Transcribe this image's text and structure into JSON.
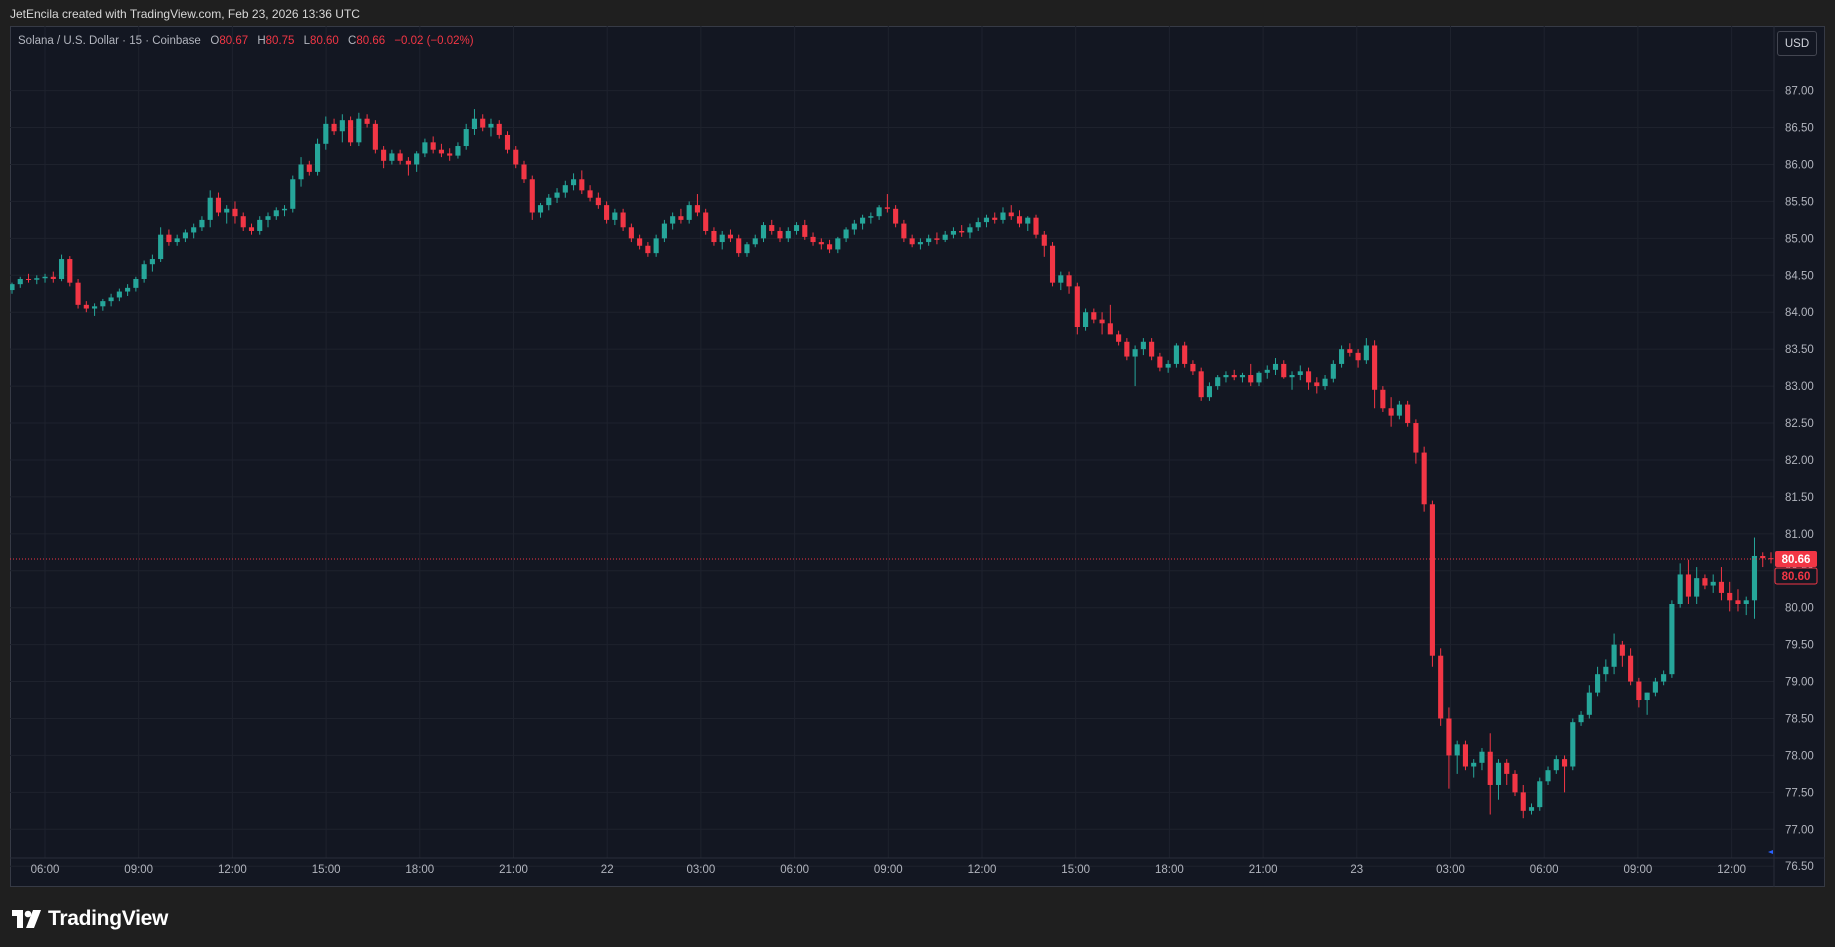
{
  "header": {
    "attribution": "JetEncila created with TradingView.com, Feb 23, 2026 13:36 UTC"
  },
  "legend": {
    "symbol": "Solana / U.S. Dollar · 15 · Coinbase",
    "o_label": "O",
    "o_value": "80.67",
    "h_label": "H",
    "h_value": "80.75",
    "l_label": "L",
    "l_value": "80.60",
    "c_label": "C",
    "c_value": "80.66",
    "change": "−0.02 (−0.02%)"
  },
  "toolbar": {
    "currency_label": "USD"
  },
  "footer": {
    "brand": "TradingView",
    "logo_icon": "tradingview-logo-icon"
  },
  "colors": {
    "background": "#131722",
    "up": "#26a69a",
    "down": "#f23645",
    "grid": "#1e222d",
    "text": "#b2b5be",
    "last_price": "#f23645"
  },
  "chart_data": {
    "type": "candlestick",
    "title": "Solana / U.S. Dollar · 15 · Coinbase",
    "xlabel": "",
    "ylabel": "",
    "ylim": [
      76.3,
      87.55
    ],
    "y_ticks": [
      "87.00",
      "86.50",
      "86.00",
      "85.50",
      "85.00",
      "84.50",
      "84.00",
      "83.50",
      "83.00",
      "82.50",
      "82.00",
      "81.50",
      "81.00",
      "80.50",
      "80.00",
      "79.50",
      "79.00",
      "78.50",
      "78.00",
      "77.50",
      "77.00",
      "76.50"
    ],
    "x_ticks": [
      "06:00",
      "09:00",
      "12:00",
      "15:00",
      "18:00",
      "21:00",
      "22",
      "03:00",
      "06:00",
      "09:00",
      "12:00",
      "15:00",
      "18:00",
      "21:00",
      "23",
      "03:00",
      "06:00",
      "09:00",
      "12:00"
    ],
    "last_price": "80.66",
    "last_price_secondary": "80.60",
    "grid": true,
    "candles": [
      [
        84.3,
        84.4,
        84.25,
        84.38
      ],
      [
        84.38,
        84.48,
        84.33,
        84.45
      ],
      [
        84.45,
        84.52,
        84.4,
        84.44
      ],
      [
        84.44,
        84.5,
        84.38,
        84.46
      ],
      [
        84.46,
        84.52,
        84.4,
        84.48
      ],
      [
        84.48,
        84.55,
        84.4,
        84.45
      ],
      [
        84.45,
        84.78,
        84.42,
        84.72
      ],
      [
        84.72,
        84.76,
        84.35,
        84.4
      ],
      [
        84.4,
        84.45,
        84.05,
        84.1
      ],
      [
        84.1,
        84.15,
        84.0,
        84.05
      ],
      [
        84.05,
        84.12,
        83.95,
        84.08
      ],
      [
        84.08,
        84.18,
        84.02,
        84.15
      ],
      [
        84.15,
        84.25,
        84.08,
        84.2
      ],
      [
        84.2,
        84.32,
        84.15,
        84.28
      ],
      [
        84.28,
        84.38,
        84.22,
        84.33
      ],
      [
        84.33,
        84.48,
        84.28,
        84.45
      ],
      [
        84.45,
        84.7,
        84.4,
        84.65
      ],
      [
        84.65,
        84.78,
        84.55,
        84.72
      ],
      [
        84.72,
        85.15,
        84.68,
        85.05
      ],
      [
        85.05,
        85.12,
        84.9,
        84.95
      ],
      [
        84.95,
        85.05,
        84.9,
        85.0
      ],
      [
        85.0,
        85.12,
        84.95,
        85.08
      ],
      [
        85.08,
        85.2,
        85.0,
        85.15
      ],
      [
        85.15,
        85.3,
        85.1,
        85.25
      ],
      [
        85.25,
        85.65,
        85.15,
        85.55
      ],
      [
        85.55,
        85.62,
        85.3,
        85.35
      ],
      [
        85.35,
        85.45,
        85.2,
        85.4
      ],
      [
        85.4,
        85.5,
        85.2,
        85.3
      ],
      [
        85.3,
        85.35,
        85.1,
        85.15
      ],
      [
        85.15,
        85.2,
        85.05,
        85.1
      ],
      [
        85.1,
        85.3,
        85.05,
        85.25
      ],
      [
        85.25,
        85.35,
        85.15,
        85.3
      ],
      [
        85.3,
        85.42,
        85.25,
        85.38
      ],
      [
        85.38,
        85.45,
        85.3,
        85.4
      ],
      [
        85.4,
        85.85,
        85.35,
        85.8
      ],
      [
        85.8,
        86.1,
        85.7,
        86.0
      ],
      [
        86.0,
        86.05,
        85.85,
        85.9
      ],
      [
        85.9,
        86.35,
        85.85,
        86.28
      ],
      [
        86.28,
        86.65,
        86.2,
        86.55
      ],
      [
        86.55,
        86.62,
        86.4,
        86.45
      ],
      [
        86.45,
        86.68,
        86.3,
        86.6
      ],
      [
        86.6,
        86.65,
        86.25,
        86.3
      ],
      [
        86.3,
        86.7,
        86.25,
        86.62
      ],
      [
        86.62,
        86.68,
        86.5,
        86.55
      ],
      [
        86.55,
        86.6,
        86.15,
        86.2
      ],
      [
        86.2,
        86.25,
        85.95,
        86.05
      ],
      [
        86.05,
        86.2,
        86.0,
        86.15
      ],
      [
        86.15,
        86.2,
        86.0,
        86.05
      ],
      [
        86.05,
        86.1,
        85.85,
        86.0
      ],
      [
        86.0,
        86.18,
        85.9,
        86.15
      ],
      [
        86.15,
        86.35,
        86.1,
        86.3
      ],
      [
        86.3,
        86.38,
        86.15,
        86.2
      ],
      [
        86.2,
        86.28,
        86.1,
        86.15
      ],
      [
        86.15,
        86.22,
        86.05,
        86.12
      ],
      [
        86.12,
        86.3,
        86.08,
        86.25
      ],
      [
        86.25,
        86.55,
        86.2,
        86.48
      ],
      [
        86.48,
        86.75,
        86.4,
        86.62
      ],
      [
        86.62,
        86.68,
        86.45,
        86.5
      ],
      [
        86.5,
        86.62,
        86.38,
        86.55
      ],
      [
        86.55,
        86.6,
        86.35,
        86.4
      ],
      [
        86.4,
        86.45,
        86.15,
        86.2
      ],
      [
        86.2,
        86.25,
        85.95,
        86.0
      ],
      [
        86.0,
        86.05,
        85.75,
        85.8
      ],
      [
        85.8,
        85.85,
        85.25,
        85.35
      ],
      [
        85.35,
        85.48,
        85.28,
        85.45
      ],
      [
        85.45,
        85.6,
        85.38,
        85.55
      ],
      [
        85.55,
        85.68,
        85.48,
        85.62
      ],
      [
        85.62,
        85.78,
        85.55,
        85.72
      ],
      [
        85.72,
        85.88,
        85.65,
        85.8
      ],
      [
        85.8,
        85.92,
        85.6,
        85.65
      ],
      [
        85.65,
        85.72,
        85.5,
        85.55
      ],
      [
        85.55,
        85.62,
        85.4,
        85.45
      ],
      [
        85.45,
        85.5,
        85.2,
        85.25
      ],
      [
        85.25,
        85.4,
        85.18,
        85.35
      ],
      [
        85.35,
        85.4,
        85.1,
        85.15
      ],
      [
        85.15,
        85.2,
        84.95,
        85.0
      ],
      [
        85.0,
        85.05,
        84.85,
        84.9
      ],
      [
        84.9,
        84.95,
        84.75,
        84.8
      ],
      [
        84.8,
        85.05,
        84.75,
        85.0
      ],
      [
        85.0,
        85.25,
        84.95,
        85.2
      ],
      [
        85.2,
        85.35,
        85.12,
        85.3
      ],
      [
        85.3,
        85.4,
        85.2,
        85.25
      ],
      [
        85.25,
        85.5,
        85.2,
        85.45
      ],
      [
        85.45,
        85.6,
        85.3,
        85.35
      ],
      [
        85.35,
        85.4,
        85.05,
        85.1
      ],
      [
        85.1,
        85.15,
        84.9,
        84.95
      ],
      [
        84.95,
        85.1,
        84.85,
        85.05
      ],
      [
        85.05,
        85.12,
        84.95,
        85.0
      ],
      [
        85.0,
        85.05,
        84.75,
        84.8
      ],
      [
        84.8,
        84.95,
        84.75,
        84.92
      ],
      [
        84.92,
        85.05,
        84.88,
        85.0
      ],
      [
        85.0,
        85.22,
        84.95,
        85.18
      ],
      [
        85.18,
        85.25,
        85.05,
        85.1
      ],
      [
        85.1,
        85.15,
        84.95,
        85.0
      ],
      [
        85.0,
        85.15,
        84.95,
        85.1
      ],
      [
        85.1,
        85.22,
        85.05,
        85.18
      ],
      [
        85.18,
        85.25,
        84.98,
        85.02
      ],
      [
        85.02,
        85.08,
        84.9,
        84.95
      ],
      [
        84.95,
        85.0,
        84.85,
        84.92
      ],
      [
        84.92,
        84.98,
        84.8,
        84.85
      ],
      [
        84.85,
        85.02,
        84.8,
        85.0
      ],
      [
        85.0,
        85.15,
        84.95,
        85.12
      ],
      [
        85.12,
        85.25,
        85.05,
        85.2
      ],
      [
        85.2,
        85.32,
        85.12,
        85.28
      ],
      [
        85.28,
        85.35,
        85.2,
        85.3
      ],
      [
        85.3,
        85.45,
        85.25,
        85.42
      ],
      [
        85.42,
        85.6,
        85.35,
        85.4
      ],
      [
        85.4,
        85.45,
        85.15,
        85.2
      ],
      [
        85.2,
        85.25,
        84.95,
        85.0
      ],
      [
        85.0,
        85.05,
        84.88,
        84.92
      ],
      [
        84.92,
        85.0,
        84.85,
        84.95
      ],
      [
        84.95,
        85.05,
        84.9,
        85.0
      ],
      [
        85.0,
        85.08,
        84.92,
        84.98
      ],
      [
        84.98,
        85.1,
        84.95,
        85.05
      ],
      [
        85.05,
        85.15,
        85.0,
        85.1
      ],
      [
        85.1,
        85.18,
        85.02,
        85.08
      ],
      [
        85.08,
        85.2,
        85.0,
        85.15
      ],
      [
        85.15,
        85.28,
        85.1,
        85.22
      ],
      [
        85.22,
        85.32,
        85.15,
        85.28
      ],
      [
        85.28,
        85.35,
        85.2,
        85.25
      ],
      [
        85.25,
        85.42,
        85.2,
        85.35
      ],
      [
        85.35,
        85.45,
        85.25,
        85.3
      ],
      [
        85.3,
        85.38,
        85.15,
        85.2
      ],
      [
        85.2,
        85.3,
        85.1,
        85.28
      ],
      [
        85.28,
        85.32,
        85.0,
        85.05
      ],
      [
        85.05,
        85.1,
        84.75,
        84.9
      ],
      [
        84.9,
        84.95,
        84.35,
        84.4
      ],
      [
        84.4,
        84.55,
        84.3,
        84.5
      ],
      [
        84.5,
        84.55,
        84.25,
        84.35
      ],
      [
        84.35,
        84.4,
        83.7,
        83.8
      ],
      [
        83.8,
        84.05,
        83.75,
        84.0
      ],
      [
        84.0,
        84.05,
        83.85,
        83.9
      ],
      [
        83.9,
        84.0,
        83.7,
        83.85
      ],
      [
        83.85,
        84.1,
        83.8,
        83.7
      ],
      [
        83.7,
        83.75,
        83.55,
        83.6
      ],
      [
        83.6,
        83.65,
        83.35,
        83.4
      ],
      [
        83.4,
        83.55,
        83.0,
        83.5
      ],
      [
        83.5,
        83.65,
        83.42,
        83.6
      ],
      [
        83.6,
        83.65,
        83.35,
        83.4
      ],
      [
        83.4,
        83.45,
        83.2,
        83.25
      ],
      [
        83.25,
        83.35,
        83.18,
        83.3
      ],
      [
        83.3,
        83.58,
        83.25,
        83.55
      ],
      [
        83.55,
        83.6,
        83.25,
        83.3
      ],
      [
        83.3,
        83.35,
        83.15,
        83.2
      ],
      [
        83.2,
        83.25,
        82.8,
        82.85
      ],
      [
        82.85,
        83.05,
        82.8,
        83.0
      ],
      [
        83.0,
        83.15,
        82.95,
        83.12
      ],
      [
        83.12,
        83.2,
        83.05,
        83.15
      ],
      [
        83.15,
        83.22,
        83.08,
        83.12
      ],
      [
        83.12,
        83.18,
        83.05,
        83.15
      ],
      [
        83.15,
        83.3,
        83.0,
        83.05
      ],
      [
        83.05,
        83.2,
        83.0,
        83.18
      ],
      [
        83.18,
        83.28,
        83.1,
        83.22
      ],
      [
        83.22,
        83.38,
        83.15,
        83.3
      ],
      [
        83.3,
        83.35,
        83.1,
        83.12
      ],
      [
        83.12,
        83.2,
        82.95,
        83.15
      ],
      [
        83.15,
        83.28,
        83.08,
        83.2
      ],
      [
        83.2,
        83.25,
        82.95,
        83.05
      ],
      [
        83.05,
        83.12,
        82.9,
        83.0
      ],
      [
        83.0,
        83.15,
        82.95,
        83.1
      ],
      [
        83.1,
        83.35,
        83.05,
        83.3
      ],
      [
        83.3,
        83.55,
        83.25,
        83.5
      ],
      [
        83.5,
        83.58,
        83.4,
        83.45
      ],
      [
        83.45,
        83.5,
        83.25,
        83.35
      ],
      [
        83.35,
        83.65,
        83.3,
        83.55
      ],
      [
        83.55,
        83.62,
        82.7,
        82.95
      ],
      [
        82.95,
        83.0,
        82.65,
        82.7
      ],
      [
        82.7,
        82.85,
        82.45,
        82.6
      ],
      [
        82.6,
        82.8,
        82.55,
        82.75
      ],
      [
        82.75,
        82.8,
        82.45,
        82.5
      ],
      [
        82.5,
        82.55,
        81.95,
        82.1
      ],
      [
        82.1,
        82.18,
        81.3,
        81.4
      ],
      [
        81.4,
        81.45,
        79.2,
        79.35
      ],
      [
        79.35,
        79.45,
        78.4,
        78.5
      ],
      [
        78.5,
        78.65,
        77.55,
        78.0
      ],
      [
        78.0,
        78.2,
        77.75,
        78.15
      ],
      [
        78.15,
        78.2,
        77.8,
        77.85
      ],
      [
        77.85,
        77.95,
        77.7,
        77.9
      ],
      [
        77.9,
        78.1,
        77.8,
        78.05
      ],
      [
        78.05,
        78.3,
        77.2,
        77.6
      ],
      [
        77.6,
        77.95,
        77.4,
        77.9
      ],
      [
        77.9,
        77.95,
        77.6,
        77.75
      ],
      [
        77.75,
        77.8,
        77.45,
        77.5
      ],
      [
        77.5,
        77.6,
        77.15,
        77.25
      ],
      [
        77.25,
        77.35,
        77.2,
        77.3
      ],
      [
        77.3,
        77.7,
        77.25,
        77.65
      ],
      [
        77.65,
        77.85,
        77.6,
        77.8
      ],
      [
        77.8,
        78.0,
        77.75,
        77.95
      ],
      [
        77.95,
        78.0,
        77.5,
        77.85
      ],
      [
        77.85,
        78.5,
        77.8,
        78.45
      ],
      [
        78.45,
        78.6,
        78.4,
        78.55
      ],
      [
        78.55,
        78.95,
        78.5,
        78.85
      ],
      [
        78.85,
        79.2,
        78.8,
        79.1
      ],
      [
        79.1,
        79.3,
        79.0,
        79.2
      ],
      [
        79.2,
        79.65,
        79.1,
        79.5
      ],
      [
        79.5,
        79.55,
        79.2,
        79.35
      ],
      [
        79.35,
        79.45,
        78.95,
        79.0
      ],
      [
        79.0,
        79.05,
        78.65,
        78.75
      ],
      [
        78.75,
        78.85,
        78.55,
        78.85
      ],
      [
        78.85,
        79.05,
        78.8,
        79.0
      ],
      [
        79.0,
        79.15,
        78.95,
        79.1
      ],
      [
        79.1,
        80.1,
        79.05,
        80.05
      ],
      [
        80.05,
        80.6,
        80.0,
        80.45
      ],
      [
        80.45,
        80.65,
        80.05,
        80.15
      ],
      [
        80.15,
        80.55,
        80.05,
        80.4
      ],
      [
        80.4,
        80.45,
        80.25,
        80.3
      ],
      [
        80.3,
        80.45,
        80.2,
        80.35
      ],
      [
        80.35,
        80.55,
        80.1,
        80.2
      ],
      [
        80.2,
        80.35,
        79.95,
        80.1
      ],
      [
        80.1,
        80.25,
        79.95,
        80.05
      ],
      [
        80.05,
        80.15,
        79.9,
        80.1
      ],
      [
        80.1,
        80.95,
        79.85,
        80.7
      ],
      [
        80.7,
        80.75,
        80.55,
        80.67
      ],
      [
        80.67,
        80.75,
        80.6,
        80.66
      ]
    ]
  }
}
